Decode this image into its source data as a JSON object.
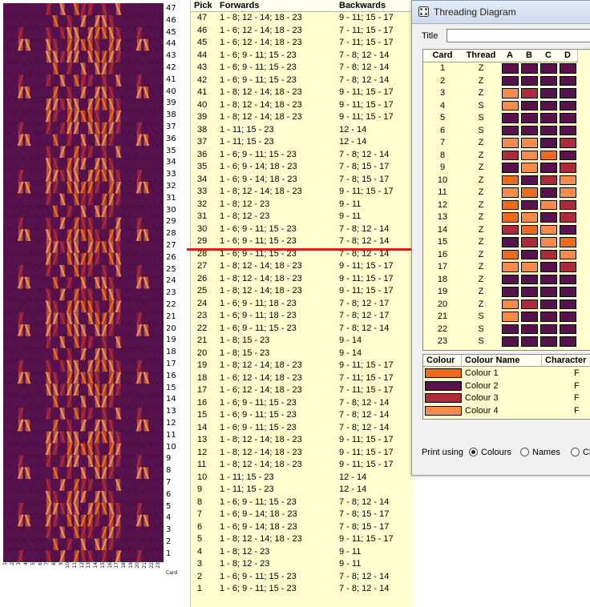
{
  "colours": [
    {
      "name": "Colour 1",
      "hex": "#f06a1c",
      "character": "F"
    },
    {
      "name": "Colour 2",
      "hex": "#58124e",
      "character": "F"
    },
    {
      "name": "Colour 3",
      "hex": "#ae2a3a",
      "character": "F"
    },
    {
      "name": "Colour 4",
      "hex": "#f88a4a",
      "character": "F"
    }
  ],
  "pattern": {
    "pick_numbers": [
      "47",
      "46",
      "45",
      "44",
      "43",
      "42",
      "41",
      "40",
      "39",
      "38",
      "37",
      "36",
      "35",
      "34",
      "33",
      "32",
      "31",
      "30",
      "29",
      "28",
      "27",
      "26",
      "25",
      "24",
      "23",
      "22",
      "21",
      "20",
      "19",
      "18",
      "17",
      "16",
      "15",
      "14",
      "13",
      "12",
      "11",
      "10",
      "9",
      "8",
      "7",
      "6",
      "5",
      "4",
      "3",
      "2",
      "1"
    ],
    "card_numbers": [
      "1",
      "2",
      "3",
      "4",
      "5",
      "6",
      "7",
      "8",
      "9",
      "10",
      "11",
      "12",
      "13",
      "14",
      "15",
      "16",
      "17",
      "18",
      "19",
      "20",
      "21",
      "22",
      "23"
    ],
    "card_axis_label": "Card"
  },
  "pick_table": {
    "headers": {
      "pick": "Pick",
      "forwards": "Forwards",
      "backwards": "Backwards"
    },
    "rows": [
      {
        "pick": "47",
        "forwards": "1 - 8; 12 - 14; 18 - 23",
        "backwards": "9 - 11; 15 - 17"
      },
      {
        "pick": "46",
        "forwards": "1 - 6; 12 - 14; 18 - 23",
        "backwards": "7 - 11; 15 - 17"
      },
      {
        "pick": "45",
        "forwards": "1 - 6; 12 - 14; 18 - 23",
        "backwards": "7 - 11; 15 - 17"
      },
      {
        "pick": "44",
        "forwards": "1 - 6; 9 - 11; 15 - 23",
        "backwards": "7 - 8; 12 - 14"
      },
      {
        "pick": "43",
        "forwards": "1 - 6; 9 - 11; 15 - 23",
        "backwards": "7 - 8; 12 - 14"
      },
      {
        "pick": "42",
        "forwards": "1 - 6; 9 - 11; 15 - 23",
        "backwards": "7 - 8; 12 - 14"
      },
      {
        "pick": "41",
        "forwards": "1 - 8; 12 - 14; 18 - 23",
        "backwards": "9 - 11; 15 - 17"
      },
      {
        "pick": "40",
        "forwards": "1 - 8; 12 - 14; 18 - 23",
        "backwards": "9 - 11; 15 - 17"
      },
      {
        "pick": "39",
        "forwards": "1 - 8; 12 - 14; 18 - 23",
        "backwards": "9 - 11; 15 - 17"
      },
      {
        "pick": "38",
        "forwards": "1 - 11; 15 - 23",
        "backwards": "12 - 14"
      },
      {
        "pick": "37",
        "forwards": "1 - 11; 15 - 23",
        "backwards": "12 - 14"
      },
      {
        "pick": "36",
        "forwards": "1 - 6; 9 - 11; 15 - 23",
        "backwards": "7 - 8; 12 - 14"
      },
      {
        "pick": "35",
        "forwards": "1 - 6; 9 - 14; 18 - 23",
        "backwards": "7 - 8; 15 - 17"
      },
      {
        "pick": "34",
        "forwards": "1 - 6; 9 - 14; 18 - 23",
        "backwards": "7 - 8; 15 - 17"
      },
      {
        "pick": "33",
        "forwards": "1 - 8; 12 - 14; 18 - 23",
        "backwards": "9 - 11; 15 - 17"
      },
      {
        "pick": "32",
        "forwards": "1 - 8; 12 - 23",
        "backwards": "9 - 11"
      },
      {
        "pick": "31",
        "forwards": "1 - 8; 12 - 23",
        "backwards": "9 - 11"
      },
      {
        "pick": "30",
        "forwards": "1 - 6; 9 - 11; 15 - 23",
        "backwards": "7 - 8; 12 - 14"
      },
      {
        "pick": "29",
        "forwards": "1 - 6; 9 - 11; 15 - 23",
        "backwards": "7 - 8; 12 - 14"
      },
      {
        "pick": "28",
        "forwards": "1 - 6; 9 - 11; 15 - 23",
        "backwards": "7 - 8; 12 - 14"
      },
      {
        "pick": "27",
        "forwards": "1 - 8; 12 - 14; 18 - 23",
        "backwards": "9 - 11; 15 - 17"
      },
      {
        "pick": "26",
        "forwards": "1 - 8; 12 - 14; 18 - 23",
        "backwards": "9 - 11; 15 - 17"
      },
      {
        "pick": "25",
        "forwards": "1 - 8; 12 - 14; 18 - 23",
        "backwards": "9 - 11; 15 - 17"
      },
      {
        "pick": "24",
        "forwards": "1 - 6; 9 - 11; 18 - 23",
        "backwards": "7 - 8; 12 - 17"
      },
      {
        "pick": "23",
        "forwards": "1 - 6; 9 - 11; 18 - 23",
        "backwards": "7 - 8; 12 - 17"
      },
      {
        "pick": "22",
        "forwards": "1 - 6; 9 - 11; 15 - 23",
        "backwards": "7 - 8; 12 - 14"
      },
      {
        "pick": "21",
        "forwards": "1 - 8; 15 - 23",
        "backwards": "9 - 14"
      },
      {
        "pick": "20",
        "forwards": "1 - 8; 15 - 23",
        "backwards": "9 - 14"
      },
      {
        "pick": "19",
        "forwards": "1 - 8; 12 - 14; 18 - 23",
        "backwards": "9 - 11; 15 - 17"
      },
      {
        "pick": "18",
        "forwards": "1 - 6; 12 - 14; 18 - 23",
        "backwards": "7 - 11; 15 - 17"
      },
      {
        "pick": "17",
        "forwards": "1 - 6; 12 - 14; 18 - 23",
        "backwards": "7 - 11; 15 - 17"
      },
      {
        "pick": "16",
        "forwards": "1 - 6; 9 - 11; 15 - 23",
        "backwards": "7 - 8; 12 - 14"
      },
      {
        "pick": "15",
        "forwards": "1 - 6; 9 - 11; 15 - 23",
        "backwards": "7 - 8; 12 - 14"
      },
      {
        "pick": "14",
        "forwards": "1 - 6; 9 - 11; 15 - 23",
        "backwards": "7 - 8; 12 - 14"
      },
      {
        "pick": "13",
        "forwards": "1 - 8; 12 - 14; 18 - 23",
        "backwards": "9 - 11; 15 - 17"
      },
      {
        "pick": "12",
        "forwards": "1 - 8; 12 - 14; 18 - 23",
        "backwards": "9 - 11; 15 - 17"
      },
      {
        "pick": "11",
        "forwards": "1 - 8; 12 - 14; 18 - 23",
        "backwards": "9 - 11; 15 - 17"
      },
      {
        "pick": "10",
        "forwards": "1 - 11; 15 - 23",
        "backwards": "12 - 14"
      },
      {
        "pick": "9",
        "forwards": "1 - 11; 15 - 23",
        "backwards": "12 - 14"
      },
      {
        "pick": "8",
        "forwards": "1 - 6; 9 - 11; 15 - 23",
        "backwards": "7 - 8; 12 - 14"
      },
      {
        "pick": "7",
        "forwards": "1 - 6; 9 - 14; 18 - 23",
        "backwards": "7 - 8; 15 - 17"
      },
      {
        "pick": "6",
        "forwards": "1 - 6; 9 - 14; 18 - 23",
        "backwards": "7 - 8; 15 - 17"
      },
      {
        "pick": "5",
        "forwards": "1 - 8; 12 - 14; 18 - 23",
        "backwards": "9 - 11; 15 - 17"
      },
      {
        "pick": "4",
        "forwards": "1 - 8; 12 - 23",
        "backwards": "9 - 11"
      },
      {
        "pick": "3",
        "forwards": "1 - 8; 12 - 23",
        "backwards": "9 - 11"
      },
      {
        "pick": "2",
        "forwards": "1 - 6; 9 - 11; 15 - 23",
        "backwards": "7 - 8; 12 - 14"
      },
      {
        "pick": "1",
        "forwards": "1 - 6; 9 - 11; 15 - 23",
        "backwards": "7 - 8; 12 - 14"
      }
    ]
  },
  "threading_window": {
    "title": "Threading Diagram",
    "title_label": "Title",
    "title_value": "",
    "grid_headers": {
      "card": "Card",
      "thread": "Thread",
      "holes": [
        "A",
        "B",
        "C",
        "D"
      ]
    },
    "cards": [
      {
        "card": "1",
        "thread": "Z",
        "holes": [
          2,
          2,
          2,
          2
        ]
      },
      {
        "card": "2",
        "thread": "Z",
        "holes": [
          2,
          2,
          2,
          2
        ]
      },
      {
        "card": "3",
        "thread": "Z",
        "holes": [
          4,
          3,
          2,
          2
        ]
      },
      {
        "card": "4",
        "thread": "S",
        "holes": [
          4,
          2,
          2,
          2
        ]
      },
      {
        "card": "5",
        "thread": "S",
        "holes": [
          2,
          2,
          2,
          2
        ]
      },
      {
        "card": "6",
        "thread": "S",
        "holes": [
          2,
          2,
          2,
          2
        ]
      },
      {
        "card": "7",
        "thread": "Z",
        "holes": [
          4,
          4,
          2,
          3
        ]
      },
      {
        "card": "8",
        "thread": "Z",
        "holes": [
          3,
          4,
          1,
          2
        ]
      },
      {
        "card": "9",
        "thread": "Z",
        "holes": [
          2,
          4,
          2,
          3
        ]
      },
      {
        "card": "10",
        "thread": "Z",
        "holes": [
          1,
          2,
          3,
          4
        ]
      },
      {
        "card": "11",
        "thread": "Z",
        "holes": [
          4,
          1,
          2,
          4
        ]
      },
      {
        "card": "12",
        "thread": "Z",
        "holes": [
          1,
          2,
          4,
          3
        ]
      },
      {
        "card": "13",
        "thread": "Z",
        "holes": [
          1,
          4,
          2,
          3
        ]
      },
      {
        "card": "14",
        "thread": "Z",
        "holes": [
          3,
          1,
          4,
          2
        ]
      },
      {
        "card": "15",
        "thread": "Z",
        "holes": [
          2,
          3,
          4,
          1
        ]
      },
      {
        "card": "16",
        "thread": "Z",
        "holes": [
          1,
          2,
          3,
          4
        ]
      },
      {
        "card": "17",
        "thread": "Z",
        "holes": [
          4,
          4,
          2,
          3
        ]
      },
      {
        "card": "18",
        "thread": "Z",
        "holes": [
          2,
          2,
          2,
          2
        ]
      },
      {
        "card": "19",
        "thread": "Z",
        "holes": [
          2,
          2,
          2,
          2
        ]
      },
      {
        "card": "20",
        "thread": "Z",
        "holes": [
          4,
          3,
          2,
          2
        ]
      },
      {
        "card": "21",
        "thread": "S",
        "holes": [
          4,
          2,
          2,
          2
        ]
      },
      {
        "card": "22",
        "thread": "S",
        "holes": [
          2,
          2,
          2,
          2
        ]
      },
      {
        "card": "23",
        "thread": "S",
        "holes": [
          2,
          2,
          2,
          2
        ]
      }
    ],
    "colour_headers": {
      "colour": "Colour",
      "name": "Colour Name",
      "character": "Character"
    },
    "print_using": {
      "label": "Print using",
      "options": [
        "Colours",
        "Names",
        "Cl"
      ],
      "selected": "Colours"
    }
  }
}
